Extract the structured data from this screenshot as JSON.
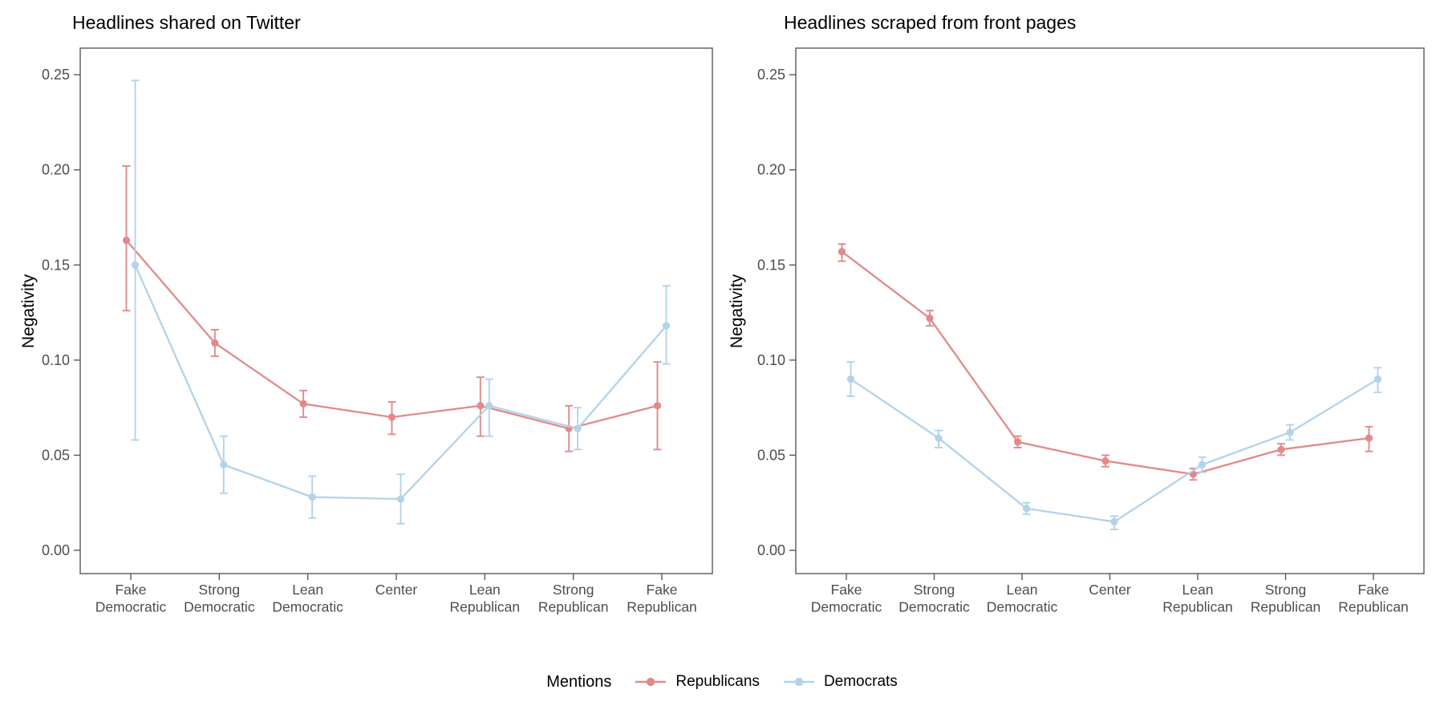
{
  "figure": {
    "background": "#FFFFFF",
    "axis_color": "#595959",
    "tick_label_color": "#4D4D4D",
    "legend": {
      "title": "Mentions",
      "position": "bottom",
      "items": [
        {
          "label": "Republicans",
          "color": "#E28A8A"
        },
        {
          "label": "Democrats",
          "color": "#B3D3E8"
        }
      ]
    }
  },
  "chart_data": [
    {
      "type": "line",
      "title": "Headlines shared on Twitter",
      "xlabel": "",
      "ylabel": "Negativity",
      "ylim": [
        -0.012,
        0.264
      ],
      "grid": false,
      "legend_position": "bottom",
      "y_ticks": [
        {
          "value": 0.0,
          "label": "0.00"
        },
        {
          "value": 0.05,
          "label": "0.05"
        },
        {
          "value": 0.1,
          "label": "0.10"
        },
        {
          "value": 0.15,
          "label": "0.15"
        },
        {
          "value": 0.2,
          "label": "0.20"
        },
        {
          "value": 0.25,
          "label": "0.25"
        }
      ],
      "categories": [
        [
          "Fake",
          "Democratic"
        ],
        [
          "Strong",
          "Democratic"
        ],
        [
          "Lean",
          "Democratic"
        ],
        [
          "Center",
          ""
        ],
        [
          "Lean",
          "Republican"
        ],
        [
          "Strong",
          "Republican"
        ],
        [
          "Fake",
          "Republican"
        ]
      ],
      "series": [
        {
          "name": "Republicans",
          "color": "#E28A8A",
          "values": [
            0.163,
            0.109,
            0.077,
            0.07,
            0.076,
            0.064,
            0.076
          ],
          "ci_lower": [
            0.126,
            0.102,
            0.07,
            0.061,
            0.06,
            0.052,
            0.053
          ],
          "ci_upper": [
            0.202,
            0.116,
            0.084,
            0.078,
            0.091,
            0.076,
            0.099
          ]
        },
        {
          "name": "Democrats",
          "color": "#B3D3E8",
          "values": [
            0.15,
            0.045,
            0.028,
            0.027,
            0.076,
            0.064,
            0.118
          ],
          "ci_lower": [
            0.058,
            0.03,
            0.017,
            0.014,
            0.06,
            0.053,
            0.098
          ],
          "ci_upper": [
            0.247,
            0.06,
            0.039,
            0.04,
            0.09,
            0.075,
            0.139
          ]
        }
      ]
    },
    {
      "type": "line",
      "title": "Headlines scraped from front pages",
      "xlabel": "",
      "ylabel": "Negativity",
      "ylim": [
        -0.012,
        0.264
      ],
      "grid": false,
      "legend_position": "bottom",
      "y_ticks": [
        {
          "value": 0.0,
          "label": "0.00"
        },
        {
          "value": 0.05,
          "label": "0.05"
        },
        {
          "value": 0.1,
          "label": "0.10"
        },
        {
          "value": 0.15,
          "label": "0.15"
        },
        {
          "value": 0.2,
          "label": "0.20"
        },
        {
          "value": 0.25,
          "label": "0.25"
        }
      ],
      "categories": [
        [
          "Fake",
          "Democratic"
        ],
        [
          "Strong",
          "Democratic"
        ],
        [
          "Lean",
          "Democratic"
        ],
        [
          "Center",
          ""
        ],
        [
          "Lean",
          "Republican"
        ],
        [
          "Strong",
          "Republican"
        ],
        [
          "Fake",
          "Republican"
        ]
      ],
      "series": [
        {
          "name": "Republicans",
          "color": "#E28A8A",
          "values": [
            0.157,
            0.122,
            0.057,
            0.047,
            0.04,
            0.053,
            0.059
          ],
          "ci_lower": [
            0.152,
            0.118,
            0.054,
            0.044,
            0.037,
            0.05,
            0.052
          ],
          "ci_upper": [
            0.161,
            0.126,
            0.06,
            0.05,
            0.043,
            0.056,
            0.065
          ]
        },
        {
          "name": "Democrats",
          "color": "#B3D3E8",
          "values": [
            0.09,
            0.059,
            0.022,
            0.015,
            0.045,
            0.062,
            0.09
          ],
          "ci_lower": [
            0.081,
            0.054,
            0.019,
            0.011,
            0.041,
            0.058,
            0.083
          ],
          "ci_upper": [
            0.099,
            0.063,
            0.025,
            0.018,
            0.049,
            0.066,
            0.096
          ]
        }
      ]
    }
  ]
}
